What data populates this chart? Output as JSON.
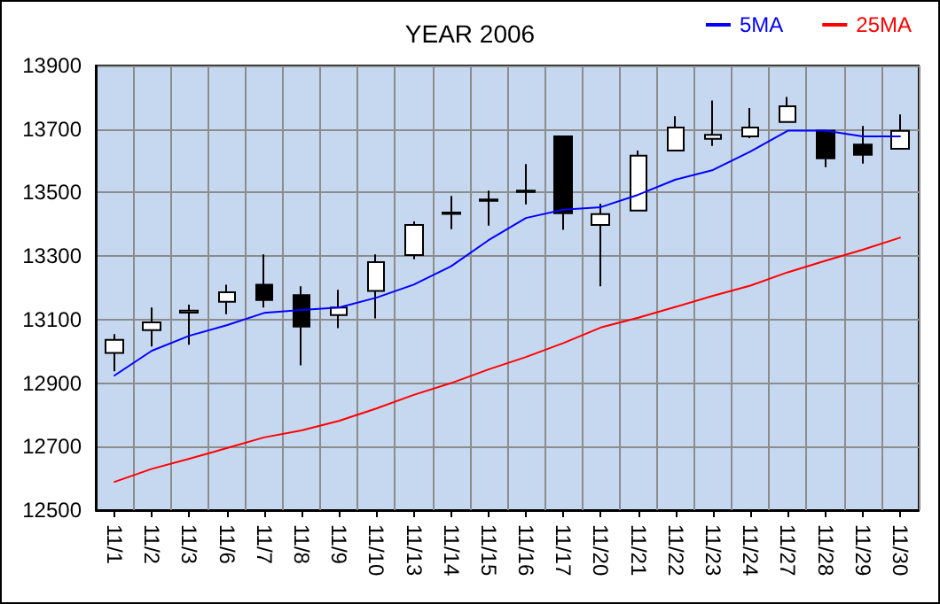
{
  "chart_data": {
    "type": "candlestick",
    "title": "YEAR 2006",
    "categories": [
      "11/1",
      "11/2",
      "11/3",
      "11/6",
      "11/7",
      "11/8",
      "11/9",
      "11/10",
      "11/13",
      "11/14",
      "11/15",
      "11/16",
      "11/17",
      "11/20",
      "11/21",
      "11/22",
      "11/23",
      "11/24",
      "11/27",
      "11/28",
      "11/29",
      "11/30"
    ],
    "ohlc": [
      [
        12995,
        13054,
        12937,
        13036
      ],
      [
        13067,
        13138,
        13015,
        13091
      ],
      [
        13122,
        13147,
        13021,
        13128
      ],
      [
        13156,
        13210,
        13117,
        13186
      ],
      [
        13210,
        13305,
        13138,
        13162
      ],
      [
        13177,
        13205,
        12956,
        13078
      ],
      [
        13114,
        13194,
        13073,
        13138
      ],
      [
        13190,
        13305,
        13104,
        13281
      ],
      [
        13303,
        13409,
        13290,
        13398
      ],
      [
        13433,
        13489,
        13385,
        13437
      ],
      [
        13474,
        13506,
        13396,
        13478
      ],
      [
        13502,
        13590,
        13463,
        13506
      ],
      [
        13677,
        13677,
        13383,
        13435
      ],
      [
        13398,
        13465,
        13205,
        13432
      ],
      [
        13443,
        13632,
        13443,
        13616
      ],
      [
        13632,
        13740,
        13632,
        13705
      ],
      [
        13669,
        13790,
        13647,
        13682
      ],
      [
        13677,
        13766,
        13671,
        13705
      ],
      [
        13722,
        13801,
        13722,
        13772
      ],
      [
        13695,
        13695,
        13580,
        13608
      ],
      [
        13651,
        13710,
        13591,
        13619
      ],
      [
        13638,
        13746,
        13638,
        13694
      ]
    ],
    "series": [
      {
        "name": "5MA",
        "type": "line",
        "color": "#0000ff",
        "values": [
          12924,
          13002,
          13049,
          13082,
          13121,
          13130,
          13138,
          13169,
          13210,
          13268,
          13350,
          13420,
          13446,
          13454,
          13493,
          13541,
          13571,
          13629,
          13695,
          13695,
          13677,
          13677
        ]
      },
      {
        "name": "25MA",
        "type": "line",
        "color": "#ff0000",
        "values": [
          12589,
          12630,
          12662,
          12695,
          12729,
          12751,
          12781,
          12820,
          12863,
          12900,
          12943,
          12982,
          13026,
          13075,
          13106,
          13140,
          13175,
          13207,
          13249,
          13285,
          13320,
          13358
        ]
      }
    ],
    "ylim": [
      12500,
      13900
    ],
    "yticks": [
      12500,
      12700,
      12900,
      13100,
      13300,
      13500,
      13700,
      13900
    ],
    "grid": true,
    "legend": "top right",
    "marker": "none",
    "line_style": "solid"
  }
}
